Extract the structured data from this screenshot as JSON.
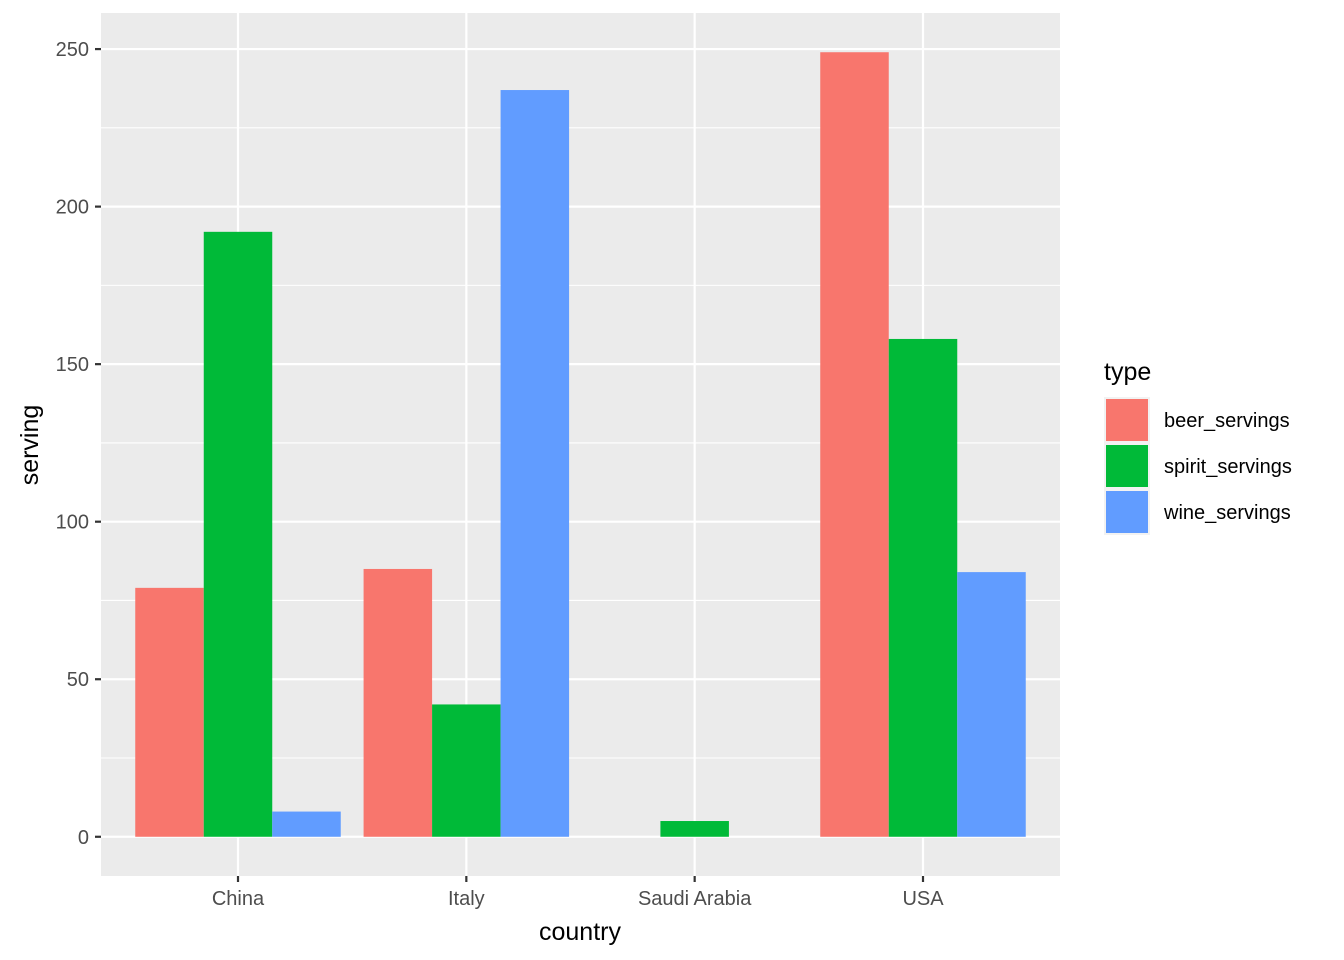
{
  "chart_data": {
    "type": "bar",
    "title": "",
    "xlabel": "country",
    "ylabel": "serving",
    "categories": [
      "China",
      "Italy",
      "Saudi Arabia",
      "USA"
    ],
    "series": [
      {
        "name": "beer_servings",
        "values": [
          79,
          85,
          0,
          249
        ],
        "color": "#F8766D"
      },
      {
        "name": "spirit_servings",
        "values": [
          192,
          42,
          5,
          158
        ],
        "color": "#00BA38"
      },
      {
        "name": "wine_servings",
        "values": [
          8,
          237,
          0,
          84
        ],
        "color": "#619CFF"
      }
    ],
    "ylim": [
      -12.45,
      261.45
    ],
    "yticks": [
      0,
      50,
      100,
      150,
      200,
      250
    ],
    "y_minor_ticks": [
      25,
      75,
      125,
      175,
      225
    ],
    "ytick_labels": [
      "0",
      "50",
      "100",
      "150",
      "200",
      "250"
    ],
    "legend": {
      "title": "type",
      "position": "right"
    },
    "grid": true,
    "panel_background": "#EBEBEB",
    "grid_color": "#FFFFFF"
  }
}
